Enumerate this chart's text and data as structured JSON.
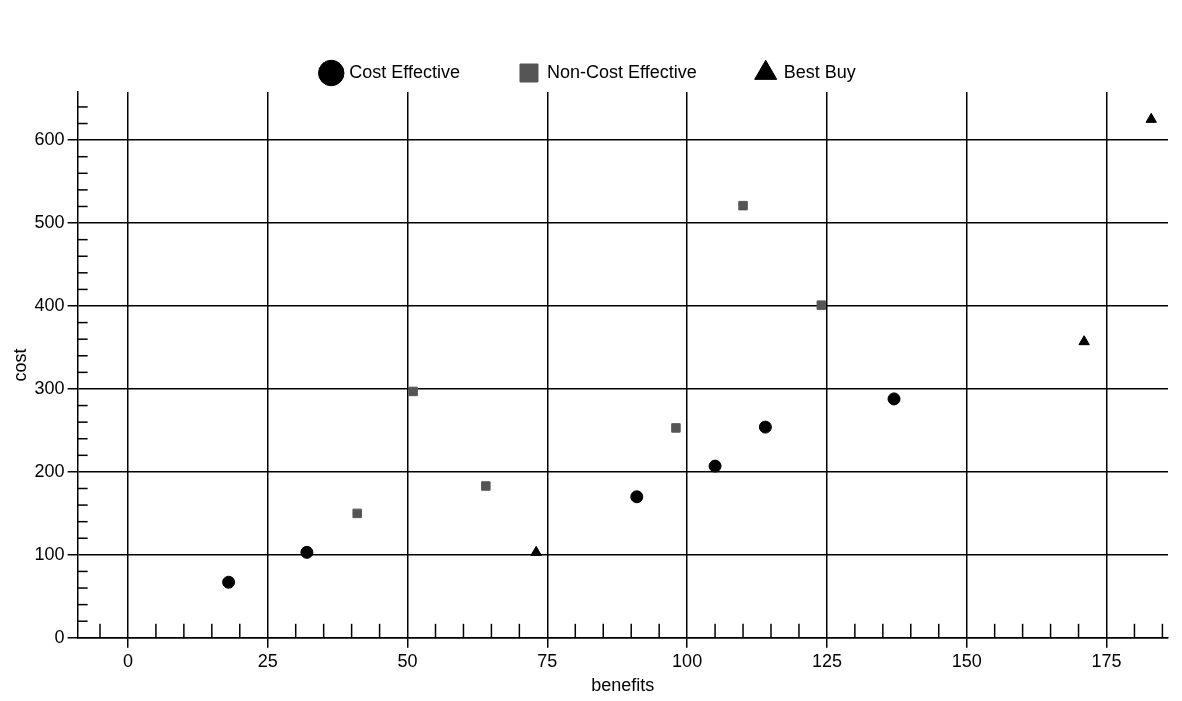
{
  "chart_data": {
    "type": "scatter",
    "xlabel": "benefits",
    "ylabel": "cost",
    "xlim": [
      -9,
      186
    ],
    "ylim": [
      0,
      658
    ],
    "xticks": [
      {
        "value": -5,
        "label": null
      },
      0,
      {
        "value": 5,
        "label": null
      },
      {
        "value": 10,
        "label": null
      },
      {
        "value": 15,
        "label": null
      },
      {
        "value": 20,
        "label": null
      },
      25,
      {
        "value": 30,
        "label": null
      },
      {
        "value": 35,
        "label": null
      },
      {
        "value": 40,
        "label": null
      },
      {
        "value": 45,
        "label": null
      },
      50,
      {
        "value": 55,
        "label": null
      },
      {
        "value": 60,
        "label": null
      },
      {
        "value": 65,
        "label": null
      },
      {
        "value": 70,
        "label": null
      },
      75,
      {
        "value": 80,
        "label": null
      },
      {
        "value": 85,
        "label": null
      },
      {
        "value": 90,
        "label": null
      },
      {
        "value": 95,
        "label": null
      },
      100,
      {
        "value": 105,
        "label": null
      },
      {
        "value": 110,
        "label": null
      },
      {
        "value": 115,
        "label": null
      },
      {
        "value": 120,
        "label": null
      },
      125,
      {
        "value": 130,
        "label": null
      },
      {
        "value": 135,
        "label": null
      },
      {
        "value": 140,
        "label": null
      },
      {
        "value": 145,
        "label": null
      },
      150,
      {
        "value": 155,
        "label": null
      },
      {
        "value": 160,
        "label": null
      },
      {
        "value": 165,
        "label": null
      },
      {
        "value": 170,
        "label": null
      },
      175,
      {
        "value": 180,
        "label": null
      },
      {
        "value": 185,
        "label": null
      }
    ],
    "yticks": [
      0,
      {
        "value": 20,
        "label": null
      },
      {
        "value": 40,
        "label": null
      },
      {
        "value": 60,
        "label": null
      },
      {
        "value": 80,
        "label": null
      },
      100,
      {
        "value": 120,
        "label": null
      },
      {
        "value": 140,
        "label": null
      },
      {
        "value": 160,
        "label": null
      },
      {
        "value": 180,
        "label": null
      },
      200,
      {
        "value": 220,
        "label": null
      },
      {
        "value": 240,
        "label": null
      },
      {
        "value": 260,
        "label": null
      },
      {
        "value": 280,
        "label": null
      },
      300,
      {
        "value": 320,
        "label": null
      },
      {
        "value": 340,
        "label": null
      },
      {
        "value": 360,
        "label": null
      },
      {
        "value": 380,
        "label": null
      },
      400,
      {
        "value": 420,
        "label": null
      },
      {
        "value": 440,
        "label": null
      },
      {
        "value": 460,
        "label": null
      },
      {
        "value": 480,
        "label": null
      },
      500,
      {
        "value": 520,
        "label": null
      },
      {
        "value": 540,
        "label": null
      },
      {
        "value": 560,
        "label": null
      },
      {
        "value": 580,
        "label": null
      },
      600,
      {
        "value": 620,
        "label": null
      },
      {
        "value": 640,
        "label": null
      }
    ],
    "grid": true,
    "legend": "top",
    "series": [
      {
        "name": "Cost Effective",
        "color": "#000000",
        "marker": "circle",
        "x": [
          18,
          32,
          91,
          105,
          114,
          137
        ],
        "values": [
          67,
          103,
          170,
          207,
          254,
          288
        ]
      },
      {
        "name": "Non-Cost Effective",
        "color": "#555555",
        "marker": "square",
        "x": [
          41,
          51,
          64,
          98,
          110,
          124
        ],
        "values": [
          150,
          297,
          183,
          253,
          521,
          401
        ]
      },
      {
        "name": "Best Buy",
        "color": "#000000",
        "marker": "triangle",
        "x": [
          73,
          171,
          183
        ],
        "values": [
          103,
          357,
          625
        ]
      }
    ]
  }
}
